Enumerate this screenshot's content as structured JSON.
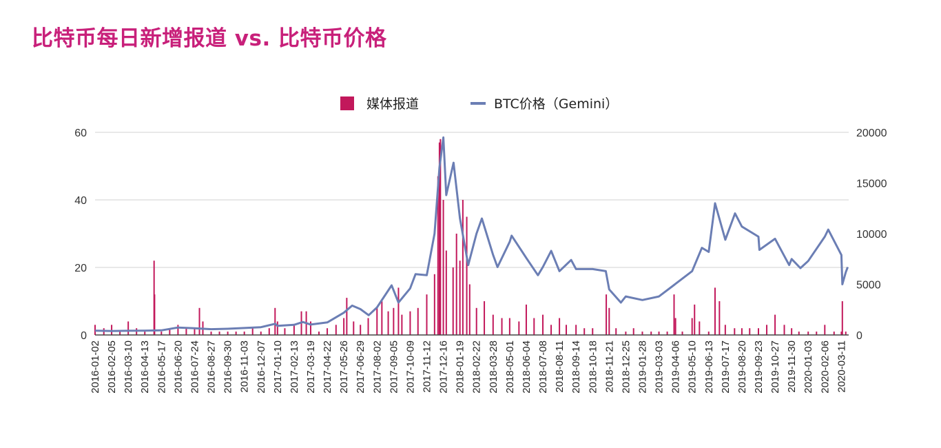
{
  "title": "比特币每日新增报道 vs. 比特币价格",
  "colors": {
    "media": "#c2185b",
    "price": "#6b7eb4",
    "grid": "#d0d0d0",
    "title": "#c8207a"
  },
  "chart_data": {
    "type": "bar+line",
    "title": "比特币每日新增报道 vs. 比特币价格",
    "legend": {
      "placement": "top",
      "entries": [
        "媒体报道",
        "BTC价格（Gemini）"
      ]
    },
    "grid": true,
    "x_range": [
      "2016-01-02",
      "2020-03-26"
    ],
    "x_tick_labels": [
      "2016-01-02",
      "2016-02-05",
      "2016-03-10",
      "2016-04-13",
      "2016-05-17",
      "2016-06-20",
      "2016-07-24",
      "2016-08-27",
      "2016-09-30",
      "2016-11-03",
      "2016-12-07",
      "2017-01-10",
      "2017-02-13",
      "2017-03-19",
      "2017-04-22",
      "2017-05-26",
      "2017-06-29",
      "2017-08-02",
      "2017-09-05",
      "2017-10-09",
      "2017-11-12",
      "2017-12-16",
      "2018-01-19",
      "2018-02-22",
      "2018-03-28",
      "2018-05-01",
      "2018-06-04",
      "2018-07-08",
      "2018-08-11",
      "2018-09-14",
      "2018-10-18",
      "2018-11-21",
      "2018-12-25",
      "2019-01-28",
      "2019-03-03",
      "2019-04-06",
      "2019-05-10",
      "2019-06-13",
      "2019-07-17",
      "2019-08-20",
      "2019-09-23",
      "2019-10-27",
      "2019-11-30",
      "2020-01-03",
      "2020-02-06",
      "2020-03-11"
    ],
    "y_left": {
      "range": [
        0,
        60
      ],
      "ticks": [
        "0",
        "20",
        "40",
        "60"
      ]
    },
    "y_right": {
      "range": [
        0,
        20000
      ],
      "ticks": [
        "0",
        "5000",
        "10000",
        "15000",
        "20000"
      ]
    },
    "series": [
      {
        "name": "媒体报道",
        "type": "bar",
        "axis": "left",
        "points": [
          [
            "2016-01-02",
            3
          ],
          [
            "2016-01-20",
            2
          ],
          [
            "2016-02-05",
            3
          ],
          [
            "2016-02-22",
            1
          ],
          [
            "2016-03-10",
            4
          ],
          [
            "2016-03-27",
            2
          ],
          [
            "2016-04-13",
            1
          ],
          [
            "2016-05-02",
            22
          ],
          [
            "2016-05-03",
            12
          ],
          [
            "2016-05-17",
            1
          ],
          [
            "2016-06-03",
            2
          ],
          [
            "2016-06-20",
            3
          ],
          [
            "2016-07-07",
            2
          ],
          [
            "2016-07-24",
            2
          ],
          [
            "2016-08-03",
            8
          ],
          [
            "2016-08-10",
            4
          ],
          [
            "2016-08-27",
            1
          ],
          [
            "2016-09-13",
            1
          ],
          [
            "2016-09-30",
            1
          ],
          [
            "2016-10-17",
            1
          ],
          [
            "2016-11-03",
            1
          ],
          [
            "2016-11-20",
            2
          ],
          [
            "2016-12-07",
            1
          ],
          [
            "2016-12-24",
            2
          ],
          [
            "2017-01-05",
            8
          ],
          [
            "2017-01-10",
            4
          ],
          [
            "2017-01-25",
            2
          ],
          [
            "2017-02-13",
            3
          ],
          [
            "2017-02-28",
            7
          ],
          [
            "2017-03-10",
            7
          ],
          [
            "2017-03-19",
            4
          ],
          [
            "2017-04-05",
            1
          ],
          [
            "2017-04-22",
            2
          ],
          [
            "2017-05-10",
            3
          ],
          [
            "2017-05-26",
            5
          ],
          [
            "2017-06-01",
            11
          ],
          [
            "2017-06-15",
            4
          ],
          [
            "2017-06-29",
            3
          ],
          [
            "2017-07-15",
            5
          ],
          [
            "2017-08-02",
            8
          ],
          [
            "2017-08-12",
            10
          ],
          [
            "2017-08-25",
            7
          ],
          [
            "2017-09-05",
            8
          ],
          [
            "2017-09-15",
            14
          ],
          [
            "2017-09-22",
            6
          ],
          [
            "2017-10-09",
            7
          ],
          [
            "2017-10-25",
            8
          ],
          [
            "2017-11-12",
            12
          ],
          [
            "2017-11-28",
            18
          ],
          [
            "2017-12-05",
            47
          ],
          [
            "2017-12-08",
            57
          ],
          [
            "2017-12-10",
            58
          ],
          [
            "2017-12-16",
            40
          ],
          [
            "2017-12-22",
            25
          ],
          [
            "2018-01-05",
            20
          ],
          [
            "2018-01-12",
            30
          ],
          [
            "2018-01-19",
            22
          ],
          [
            "2018-01-25",
            40
          ],
          [
            "2018-02-02",
            35
          ],
          [
            "2018-02-08",
            15
          ],
          [
            "2018-02-22",
            8
          ],
          [
            "2018-03-10",
            10
          ],
          [
            "2018-03-28",
            6
          ],
          [
            "2018-04-15",
            5
          ],
          [
            "2018-05-01",
            5
          ],
          [
            "2018-05-20",
            4
          ],
          [
            "2018-06-04",
            9
          ],
          [
            "2018-06-20",
            5
          ],
          [
            "2018-07-08",
            6
          ],
          [
            "2018-07-25",
            3
          ],
          [
            "2018-08-11",
            5
          ],
          [
            "2018-08-25",
            3
          ],
          [
            "2018-09-14",
            3
          ],
          [
            "2018-10-01",
            2
          ],
          [
            "2018-10-18",
            2
          ],
          [
            "2018-11-15",
            12
          ],
          [
            "2018-11-21",
            8
          ],
          [
            "2018-12-05",
            2
          ],
          [
            "2018-12-25",
            1
          ],
          [
            "2019-01-10",
            2
          ],
          [
            "2019-01-28",
            1
          ],
          [
            "2019-02-15",
            1
          ],
          [
            "2019-03-03",
            1
          ],
          [
            "2019-03-20",
            1
          ],
          [
            "2019-04-03",
            12
          ],
          [
            "2019-04-06",
            5
          ],
          [
            "2019-04-20",
            1
          ],
          [
            "2019-05-10",
            5
          ],
          [
            "2019-05-15",
            9
          ],
          [
            "2019-05-25",
            4
          ],
          [
            "2019-06-13",
            1
          ],
          [
            "2019-06-26",
            14
          ],
          [
            "2019-07-05",
            10
          ],
          [
            "2019-07-17",
            3
          ],
          [
            "2019-08-05",
            2
          ],
          [
            "2019-08-20",
            2
          ],
          [
            "2019-09-05",
            2
          ],
          [
            "2019-09-23",
            2
          ],
          [
            "2019-10-10",
            3
          ],
          [
            "2019-10-27",
            6
          ],
          [
            "2019-11-15",
            3
          ],
          [
            "2019-11-30",
            2
          ],
          [
            "2019-12-15",
            1
          ],
          [
            "2020-01-03",
            1
          ],
          [
            "2020-01-20",
            1
          ],
          [
            "2020-02-06",
            3
          ],
          [
            "2020-02-25",
            1
          ],
          [
            "2020-03-11",
            1
          ],
          [
            "2020-03-13",
            10
          ],
          [
            "2020-03-20",
            1
          ]
        ]
      },
      {
        "name": "BTC价格（Gemini）",
        "type": "line",
        "axis": "right",
        "points": [
          [
            "2016-01-02",
            430
          ],
          [
            "2016-02-05",
            390
          ],
          [
            "2016-03-10",
            415
          ],
          [
            "2016-04-13",
            425
          ],
          [
            "2016-05-17",
            455
          ],
          [
            "2016-06-20",
            735
          ],
          [
            "2016-07-24",
            660
          ],
          [
            "2016-08-27",
            570
          ],
          [
            "2016-09-30",
            610
          ],
          [
            "2016-11-03",
            690
          ],
          [
            "2016-12-07",
            770
          ],
          [
            "2017-01-05",
            1100
          ],
          [
            "2017-01-10",
            900
          ],
          [
            "2017-02-13",
            1000
          ],
          [
            "2017-03-03",
            1280
          ],
          [
            "2017-03-19",
            1030
          ],
          [
            "2017-04-22",
            1240
          ],
          [
            "2017-05-26",
            2200
          ],
          [
            "2017-06-12",
            2900
          ],
          [
            "2017-06-29",
            2550
          ],
          [
            "2017-07-16",
            1950
          ],
          [
            "2017-08-02",
            2720
          ],
          [
            "2017-09-01",
            4900
          ],
          [
            "2017-09-05",
            4400
          ],
          [
            "2017-09-15",
            3200
          ],
          [
            "2017-10-09",
            4600
          ],
          [
            "2017-10-20",
            6000
          ],
          [
            "2017-11-12",
            5900
          ],
          [
            "2017-11-28",
            10000
          ],
          [
            "2017-12-08",
            16500
          ],
          [
            "2017-12-16",
            19500
          ],
          [
            "2017-12-22",
            13800
          ],
          [
            "2018-01-06",
            17000
          ],
          [
            "2018-01-19",
            11500
          ],
          [
            "2018-02-05",
            6900
          ],
          [
            "2018-02-22",
            10000
          ],
          [
            "2018-03-05",
            11500
          ],
          [
            "2018-03-28",
            7900
          ],
          [
            "2018-04-06",
            6700
          ],
          [
            "2018-05-01",
            9200
          ],
          [
            "2018-05-05",
            9800
          ],
          [
            "2018-06-04",
            7600
          ],
          [
            "2018-06-28",
            5900
          ],
          [
            "2018-07-08",
            6700
          ],
          [
            "2018-07-25",
            8300
          ],
          [
            "2018-08-11",
            6300
          ],
          [
            "2018-09-04",
            7400
          ],
          [
            "2018-09-14",
            6500
          ],
          [
            "2018-10-18",
            6500
          ],
          [
            "2018-11-14",
            6300
          ],
          [
            "2018-11-21",
            4500
          ],
          [
            "2018-12-15",
            3200
          ],
          [
            "2018-12-25",
            3800
          ],
          [
            "2019-01-28",
            3450
          ],
          [
            "2019-03-03",
            3800
          ],
          [
            "2019-04-02",
            4900
          ],
          [
            "2019-04-06",
            5050
          ],
          [
            "2019-05-10",
            6300
          ],
          [
            "2019-05-30",
            8600
          ],
          [
            "2019-06-13",
            8200
          ],
          [
            "2019-06-26",
            13000
          ],
          [
            "2019-07-17",
            9400
          ],
          [
            "2019-08-06",
            12000
          ],
          [
            "2019-08-20",
            10700
          ],
          [
            "2019-09-23",
            9700
          ],
          [
            "2019-09-25",
            8400
          ],
          [
            "2019-10-27",
            9500
          ],
          [
            "2019-11-25",
            6900
          ],
          [
            "2019-11-30",
            7500
          ],
          [
            "2019-12-18",
            6600
          ],
          [
            "2020-01-03",
            7300
          ],
          [
            "2020-02-06",
            9700
          ],
          [
            "2020-02-13",
            10400
          ],
          [
            "2020-03-11",
            7900
          ],
          [
            "2020-03-13",
            5000
          ],
          [
            "2020-03-20",
            6200
          ],
          [
            "2020-03-24",
            6700
          ]
        ]
      }
    ]
  }
}
